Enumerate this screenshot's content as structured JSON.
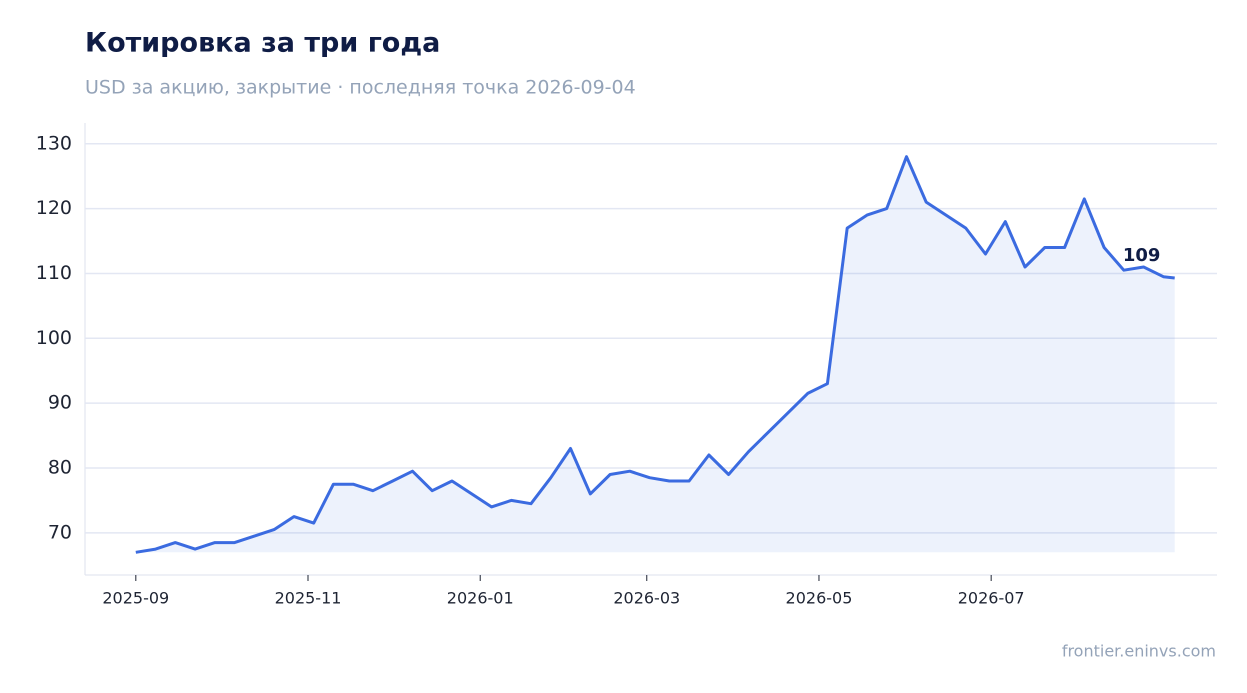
{
  "chart_data": {
    "type": "line",
    "title": "Котировка за три года",
    "subtitle": "USD за акцию, закрытие · последняя точка 2026-09-04",
    "source": "frontier.eninvs.com",
    "annotation": "109",
    "color": "#3b6be0",
    "x": [
      "2025-09-01",
      "2025-09-08",
      "2025-09-15",
      "2025-09-22",
      "2025-09-29",
      "2025-10-06",
      "2025-10-13",
      "2025-10-20",
      "2025-10-27",
      "2025-11-03",
      "2025-11-10",
      "2025-11-17",
      "2025-11-24",
      "2025-12-01",
      "2025-12-08",
      "2025-12-15",
      "2025-12-22",
      "2025-12-29",
      "2026-01-05",
      "2026-01-12",
      "2026-01-19",
      "2026-01-26",
      "2026-02-02",
      "2026-02-09",
      "2026-02-16",
      "2026-02-23",
      "2026-03-02",
      "2026-03-09",
      "2026-03-16",
      "2026-03-23",
      "2026-03-30",
      "2026-04-06",
      "2026-04-13",
      "2026-04-20",
      "2026-04-27",
      "2026-05-04",
      "2026-05-11",
      "2026-05-18",
      "2026-05-25",
      "2026-06-01",
      "2026-06-08",
      "2026-06-15",
      "2026-06-22",
      "2026-06-29",
      "2026-07-06",
      "2026-07-13",
      "2026-07-20",
      "2026-07-27",
      "2026-08-03",
      "2026-08-10",
      "2026-08-17",
      "2026-08-24",
      "2026-08-31",
      "2026-09-04"
    ],
    "values": [
      67,
      67.5,
      68.5,
      67.5,
      68.5,
      68.5,
      69.5,
      70.5,
      72.5,
      71.5,
      77.5,
      77.5,
      76.5,
      78,
      79.5,
      76.5,
      78,
      76,
      74,
      75,
      74.5,
      78.5,
      83,
      76,
      79,
      79.5,
      78.5,
      78,
      78,
      82,
      79,
      82.5,
      85.5,
      88.5,
      91.5,
      93,
      117,
      119,
      120,
      128,
      121,
      119,
      117,
      113,
      118,
      111,
      114,
      114,
      121.5,
      114,
      110.5,
      111,
      109.5,
      109.3
    ],
    "xlim": [
      "2025-08-14",
      "2026-09-19"
    ],
    "xticks": [
      {
        "value": "2025-09-01",
        "label": "2025-09"
      },
      {
        "value": "2025-11-01",
        "label": "2025-11"
      },
      {
        "value": "2026-01-01",
        "label": "2026-01"
      },
      {
        "value": "2026-03-01",
        "label": "2026-03"
      },
      {
        "value": "2026-05-01",
        "label": "2026-05"
      },
      {
        "value": "2026-07-01",
        "label": "2026-07"
      }
    ],
    "ylim": [
      63.5,
      133.2
    ],
    "yticks": [
      70,
      80,
      90,
      100,
      110,
      120,
      130
    ],
    "grid": true
  }
}
